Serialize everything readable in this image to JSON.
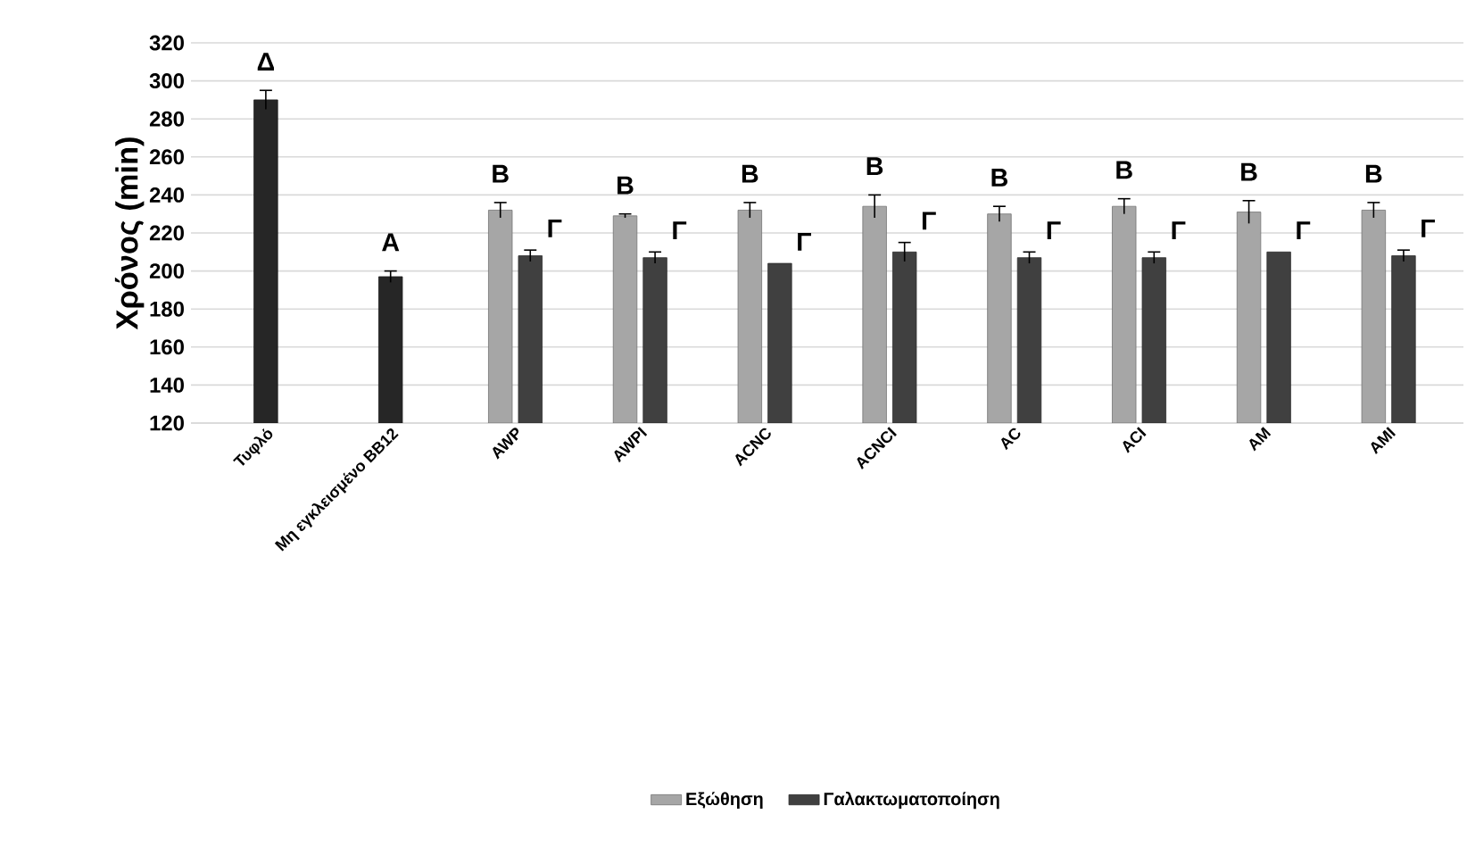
{
  "chart_data": {
    "type": "bar",
    "ylabel": "Χρόνος (min)",
    "categories": [
      "Τυφλό",
      "Μη εγκλεισμένο BB12",
      "AWP",
      "AWPI",
      "ACNC",
      "ACNCI",
      "AC",
      "ACI",
      "AM",
      "AMI"
    ],
    "series": [
      {
        "name": "Εξώθηση",
        "color": "#a6a6a6",
        "values": [
          null,
          null,
          232,
          229,
          232,
          234,
          230,
          234,
          231,
          232
        ],
        "errors": [
          null,
          null,
          4,
          1,
          4,
          6,
          4,
          4,
          6,
          4
        ],
        "value_labels": [
          null,
          null,
          "B",
          "B",
          "B",
          "B",
          "B",
          "B",
          "B",
          "B"
        ]
      },
      {
        "name": "Γαλακτωματοποίηση",
        "color": "#404040",
        "values": [
          null,
          null,
          208,
          207,
          204,
          210,
          207,
          207,
          210,
          208
        ],
        "errors": [
          null,
          null,
          3,
          3,
          null,
          5,
          3,
          3,
          null,
          3
        ],
        "value_labels": [
          null,
          null,
          "Γ",
          "Γ",
          "Γ",
          "Γ",
          "Γ",
          "Γ",
          "Γ",
          "Γ"
        ]
      },
      {
        "color": "#262626",
        "values": [
          290,
          197,
          null,
          null,
          null,
          null,
          null,
          null,
          null,
          null
        ],
        "errors": [
          5,
          3,
          null,
          null,
          null,
          null,
          null,
          null,
          null,
          null
        ],
        "value_labels": [
          "Δ",
          "A",
          null,
          null,
          null,
          null,
          null,
          null,
          null,
          null
        ]
      }
    ],
    "ylim": [
      120,
      320
    ],
    "yticks": [
      120,
      140,
      160,
      180,
      200,
      220,
      240,
      260,
      280,
      300,
      320
    ],
    "grid": "y",
    "legend": "bottom"
  }
}
